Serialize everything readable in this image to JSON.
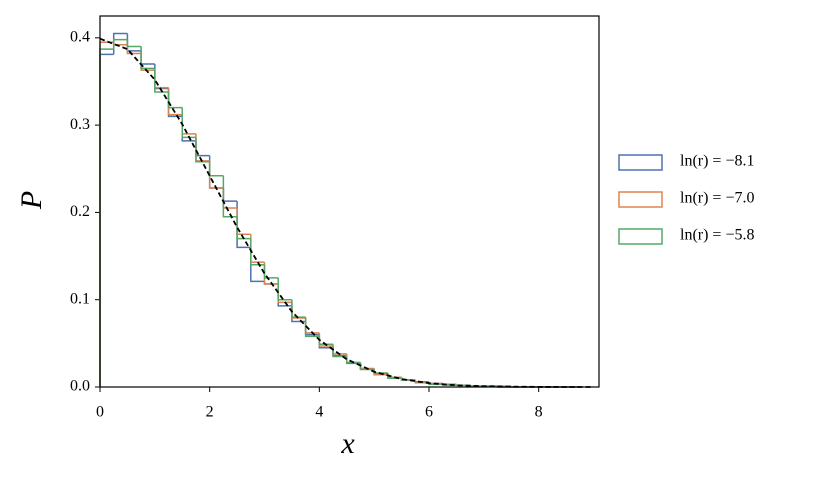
{
  "chart_data": {
    "type": "histogram",
    "xlabel": "x",
    "ylabel": "P",
    "bins": [
      0,
      0.25,
      0.5,
      0.75,
      1,
      1.25,
      1.5,
      1.75,
      2,
      2.25,
      2.5,
      2.75,
      3,
      3.25,
      3.5,
      3.75,
      4,
      4.25,
      4.5,
      4.75,
      5,
      5.25,
      5.5,
      5.75,
      6,
      6.25,
      6.5,
      6.75,
      7,
      7.25,
      7.5,
      7.75,
      8,
      8.25,
      8.5,
      8.75
    ],
    "series": [
      {
        "name": "ln(r) = −8.1",
        "color": "#4c72b0",
        "values": [
          0.381,
          0.405,
          0.385,
          0.37,
          0.342,
          0.31,
          0.282,
          0.265,
          0.228,
          0.213,
          0.16,
          0.121,
          0.118,
          0.093,
          0.075,
          0.06,
          0.045,
          0.036,
          0.027,
          0.021,
          0.015,
          0.011,
          0.008,
          0.005,
          0.004,
          0.003,
          0.002,
          0.001,
          0.001,
          0,
          0,
          0,
          0,
          0,
          0
        ]
      },
      {
        "name": "ln(r) = −7.0",
        "color": "#dd8452",
        "values": [
          0.395,
          0.392,
          0.382,
          0.363,
          0.343,
          0.312,
          0.29,
          0.259,
          0.228,
          0.205,
          0.175,
          0.143,
          0.118,
          0.097,
          0.079,
          0.062,
          0.047,
          0.038,
          0.028,
          0.021,
          0.014,
          0.011,
          0.008,
          0.005,
          0.004,
          0.002,
          0.002,
          0.001,
          0.001,
          0.001,
          0,
          0,
          0,
          0,
          0
        ]
      },
      {
        "name": "ln(r) = −5.8",
        "color": "#55a868",
        "values": [
          0.387,
          0.398,
          0.39,
          0.365,
          0.338,
          0.32,
          0.286,
          0.258,
          0.242,
          0.195,
          0.17,
          0.14,
          0.125,
          0.1,
          0.08,
          0.058,
          0.049,
          0.035,
          0.028,
          0.02,
          0.016,
          0.01,
          0.008,
          0.006,
          0.003,
          0.003,
          0.002,
          0.001,
          0.001,
          0,
          0,
          0,
          0,
          0,
          0
        ]
      }
    ],
    "curve": {
      "color": "#000000",
      "dashed": true,
      "x": [
        0,
        0.5,
        1,
        1.5,
        2,
        2.5,
        3,
        3.5,
        4,
        4.5,
        5,
        5.5,
        6,
        6.5,
        7,
        7.5,
        8,
        8.5,
        9
      ],
      "values": [
        0.399,
        0.387,
        0.352,
        0.301,
        0.242,
        0.183,
        0.13,
        0.0863,
        0.054,
        0.0318,
        0.0175,
        0.0091,
        0.0044,
        0.002,
        0.0009,
        0.0004,
        0.0001,
        0,
        0
      ]
    },
    "xlim": [
      0,
      9.1
    ],
    "xticks": [
      0,
      2,
      4,
      6,
      8
    ],
    "ylim": [
      0,
      0.425
    ],
    "yticks": [
      {
        "value": 0,
        "label": "0.0"
      },
      0.1,
      0.2,
      0.3,
      0.4
    ],
    "legend": "right"
  }
}
